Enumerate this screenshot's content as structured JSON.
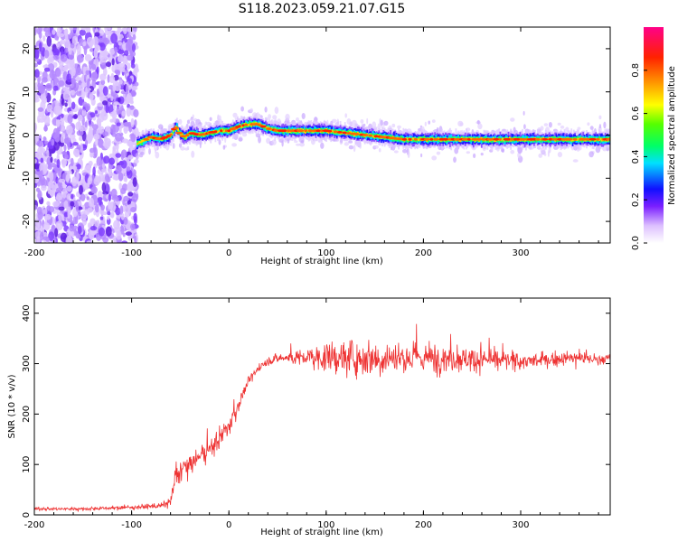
{
  "title": "S118.2023.059.21.07.G15",
  "chart_data": [
    {
      "type": "heatmap",
      "xlabel": "Height of straight line (km)",
      "ylabel": "Frequency (Hz)",
      "xlim": [
        -200,
        392
      ],
      "ylim": [
        -25,
        25
      ],
      "xticks": [
        -200,
        -100,
        0,
        100,
        200,
        300
      ],
      "yticks": [
        -20,
        -10,
        0,
        10,
        20
      ],
      "colorbar": {
        "label": "Normalized spectral amplitude",
        "range": [
          0,
          1
        ],
        "ticks": [
          0.0,
          0.2,
          0.4,
          0.6,
          0.8
        ]
      },
      "noise_region_x": [
        -200,
        -95
      ],
      "ridge": {
        "x": [
          -95,
          -90,
          -80,
          -70,
          -60,
          -55,
          -50,
          -45,
          -40,
          -30,
          -20,
          -10,
          0,
          10,
          20,
          30,
          40,
          50,
          60,
          80,
          100,
          120,
          140,
          160,
          180,
          200,
          220,
          240,
          260,
          280,
          300,
          320,
          340,
          360,
          380,
          392
        ],
        "y": [
          -2,
          -1.5,
          -0.5,
          -1,
          0,
          2,
          0,
          -0.5,
          0.5,
          0,
          0.5,
          1,
          1,
          2,
          2.5,
          2.5,
          1.5,
          1,
          1,
          1,
          1,
          0.5,
          0,
          -0.5,
          -1,
          -1,
          -1,
          -1,
          -1,
          -1,
          -1,
          -1,
          -1,
          -1,
          -1,
          -1
        ]
      }
    },
    {
      "type": "line",
      "xlabel": "Height of straight line (km)",
      "ylabel": "SNR (10 * v/v)",
      "xlim": [
        -200,
        392
      ],
      "ylim": [
        0,
        430
      ],
      "xticks": [
        -200,
        -100,
        0,
        100,
        200,
        300
      ],
      "yticks": [
        0,
        100,
        200,
        300,
        400
      ],
      "series": [
        {
          "color": "#ee3333",
          "x": [
            -200,
            -150,
            -100,
            -70,
            -60,
            -55,
            -50,
            -40,
            -30,
            -20,
            -10,
            0,
            10,
            20,
            30,
            40,
            50,
            60,
            80,
            100,
            120,
            140,
            160,
            180,
            200,
            220,
            240,
            260,
            280,
            300,
            320,
            340,
            360,
            380,
            392
          ],
          "y": [
            12,
            12,
            15,
            18,
            25,
            70,
            90,
            100,
            115,
            130,
            150,
            175,
            220,
            265,
            290,
            305,
            310,
            312,
            312,
            312,
            312,
            312,
            312,
            312,
            312,
            312,
            310,
            308,
            306,
            305,
            305,
            310,
            312,
            308,
            310
          ],
          "spread": [
            5,
            5,
            6,
            8,
            15,
            35,
            35,
            30,
            30,
            30,
            35,
            30,
            25,
            15,
            12,
            12,
            15,
            20,
            30,
            45,
            55,
            55,
            55,
            50,
            50,
            45,
            40,
            35,
            30,
            25,
            22,
            20,
            20,
            18,
            16
          ]
        }
      ]
    }
  ]
}
